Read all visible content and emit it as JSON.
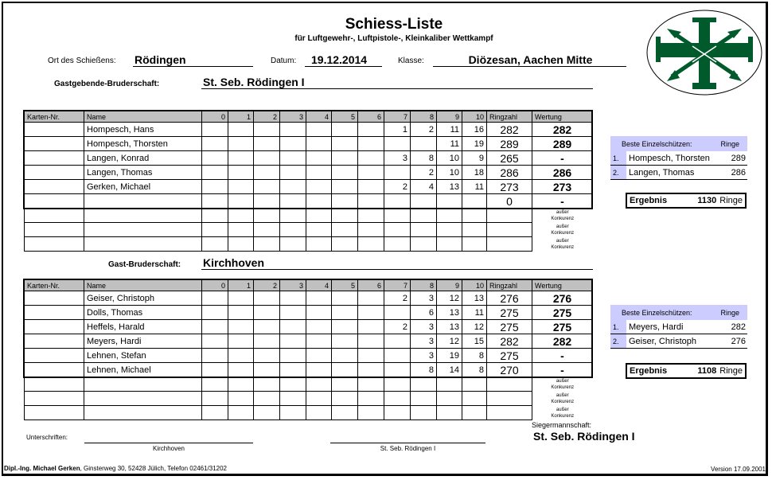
{
  "header": {
    "title": "Schiess-Liste",
    "subtitle": "für Luftgewehr-, Luftpistole-, Kleinkaliber Wettkampf",
    "ort_label": "Ort des Schießens:",
    "ort": "Rödingen",
    "datum_label": "Datum:",
    "datum": "19.12.2014",
    "klasse_label": "Klasse:",
    "klasse": "Diözesan, Aachen Mitte"
  },
  "logo": {
    "icon": "cross-with-arrows-logo",
    "color": "#005a2b"
  },
  "columns": [
    "Karten-Nr.",
    "Name",
    "0",
    "1",
    "2",
    "3",
    "4",
    "5",
    "6",
    "7",
    "8",
    "9",
    "10",
    "Ringzahl",
    "Wertung"
  ],
  "ausser": "außer Konkurenz",
  "teams": [
    {
      "label": "Gastgebende-Bruderschaft:",
      "name": "St. Seb. Rödingen I",
      "rows": [
        {
          "karte": "",
          "name": "Hompesch, Hans",
          "hits": [
            "",
            "",
            "",
            "",
            "",
            "",
            "",
            "1",
            "2",
            "11",
            "16"
          ],
          "ringzahl": "282",
          "wertung": "282"
        },
        {
          "karte": "",
          "name": "Hompesch, Thorsten",
          "hits": [
            "",
            "",
            "",
            "",
            "",
            "",
            "",
            "",
            "",
            "11",
            "19"
          ],
          "ringzahl": "289",
          "wertung": "289"
        },
        {
          "karte": "",
          "name": "Langen, Konrad",
          "hits": [
            "",
            "",
            "",
            "",
            "",
            "",
            "",
            "3",
            "8",
            "10",
            "9"
          ],
          "ringzahl": "265",
          "wertung": "-"
        },
        {
          "karte": "",
          "name": "Langen, Thomas",
          "hits": [
            "",
            "",
            "",
            "",
            "",
            "",
            "",
            "",
            "2",
            "10",
            "18"
          ],
          "ringzahl": "286",
          "wertung": "286"
        },
        {
          "karte": "",
          "name": "Gerken, Michael",
          "hits": [
            "",
            "",
            "",
            "",
            "",
            "",
            "",
            "2",
            "4",
            "13",
            "11"
          ],
          "ringzahl": "273",
          "wertung": "273"
        },
        {
          "karte": "",
          "name": "",
          "hits": [
            "",
            "",
            "",
            "",
            "",
            "",
            "",
            "",
            "",
            "",
            ""
          ],
          "ringzahl": "0",
          "wertung": "-"
        }
      ],
      "best_header": "Beste Einzelschützen:",
      "best_ringe_label": "Ringe",
      "best": [
        {
          "rank": "1.",
          "name": "Hompesch, Thorsten",
          "ringe": "289"
        },
        {
          "rank": "2.",
          "name": "Langen, Thomas",
          "ringe": "286"
        }
      ],
      "ergebnis_label": "Ergebnis",
      "ergebnis": "1130",
      "ergebnis_unit": "Ringe"
    },
    {
      "label": "Gast-Bruderschaft:",
      "name": "Kirchhoven",
      "rows": [
        {
          "karte": "",
          "name": "Geiser, Christoph",
          "hits": [
            "",
            "",
            "",
            "",
            "",
            "",
            "",
            "2",
            "3",
            "12",
            "13"
          ],
          "ringzahl": "276",
          "wertung": "276"
        },
        {
          "karte": "",
          "name": "Dolls, Thomas",
          "hits": [
            "",
            "",
            "",
            "",
            "",
            "",
            "",
            "",
            "6",
            "13",
            "11"
          ],
          "ringzahl": "275",
          "wertung": "275"
        },
        {
          "karte": "",
          "name": "Heffels, Harald",
          "hits": [
            "",
            "",
            "",
            "",
            "",
            "",
            "",
            "2",
            "3",
            "13",
            "12"
          ],
          "ringzahl": "275",
          "wertung": "275"
        },
        {
          "karte": "",
          "name": "Meyers, Hardi",
          "hits": [
            "",
            "",
            "",
            "",
            "",
            "",
            "",
            "",
            "3",
            "12",
            "15"
          ],
          "ringzahl": "282",
          "wertung": "282"
        },
        {
          "karte": "",
          "name": "Lehnen, Stefan",
          "hits": [
            "",
            "",
            "",
            "",
            "",
            "",
            "",
            "",
            "3",
            "19",
            "8"
          ],
          "ringzahl": "275",
          "wertung": "-"
        },
        {
          "karte": "",
          "name": "Lehnen, Michael",
          "hits": [
            "",
            "",
            "",
            "",
            "",
            "",
            "",
            "",
            "8",
            "14",
            "8"
          ],
          "ringzahl": "270",
          "wertung": "-"
        }
      ],
      "best_header": "Beste Einzelschützen:",
      "best_ringe_label": "Ringe",
      "best": [
        {
          "rank": "1.",
          "name": "Meyers, Hardi",
          "ringe": "282"
        },
        {
          "rank": "2.",
          "name": "Geiser, Christoph",
          "ringe": "276"
        }
      ],
      "ergebnis_label": "Ergebnis",
      "ergebnis": "1108",
      "ergebnis_unit": "Ringe"
    }
  ],
  "sieger": {
    "label": "Siegermannschaft:",
    "name": "St. Seb. Rödingen I"
  },
  "signatures": {
    "label": "Unterschriften:",
    "left": "Kirchhoven",
    "right": "St. Seb. Rödingen I"
  },
  "footer": {
    "author": "Dipl.-Ing. Michael Gerken",
    "address": ", Ginsterweg 30, 52428 Jülich, Telefon 02461/31202",
    "version": "Version 17.09.2001"
  }
}
